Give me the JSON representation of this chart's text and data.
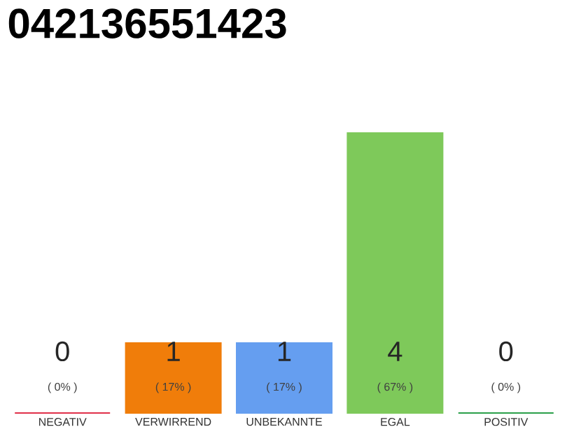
{
  "chart_data": {
    "type": "bar",
    "title": "042136551423",
    "categories": [
      "NEGATIV",
      "VERWIRREND",
      "UNBEKANNTE",
      "EGAL",
      "POSITIV"
    ],
    "values": [
      0,
      1,
      1,
      4,
      0
    ],
    "colors": [
      "#e0304a",
      "#f07d0a",
      "#659ef0",
      "#7ec95a",
      "#2aa04a"
    ],
    "value_labels": [
      "0",
      "1",
      "1",
      "4",
      "0"
    ],
    "annotations": [
      "( 0% )",
      "( 17% )",
      "( 17% )",
      "( 67% )",
      "( 0% )"
    ],
    "ylim": [
      0,
      4
    ],
    "tick_labels": "x"
  }
}
